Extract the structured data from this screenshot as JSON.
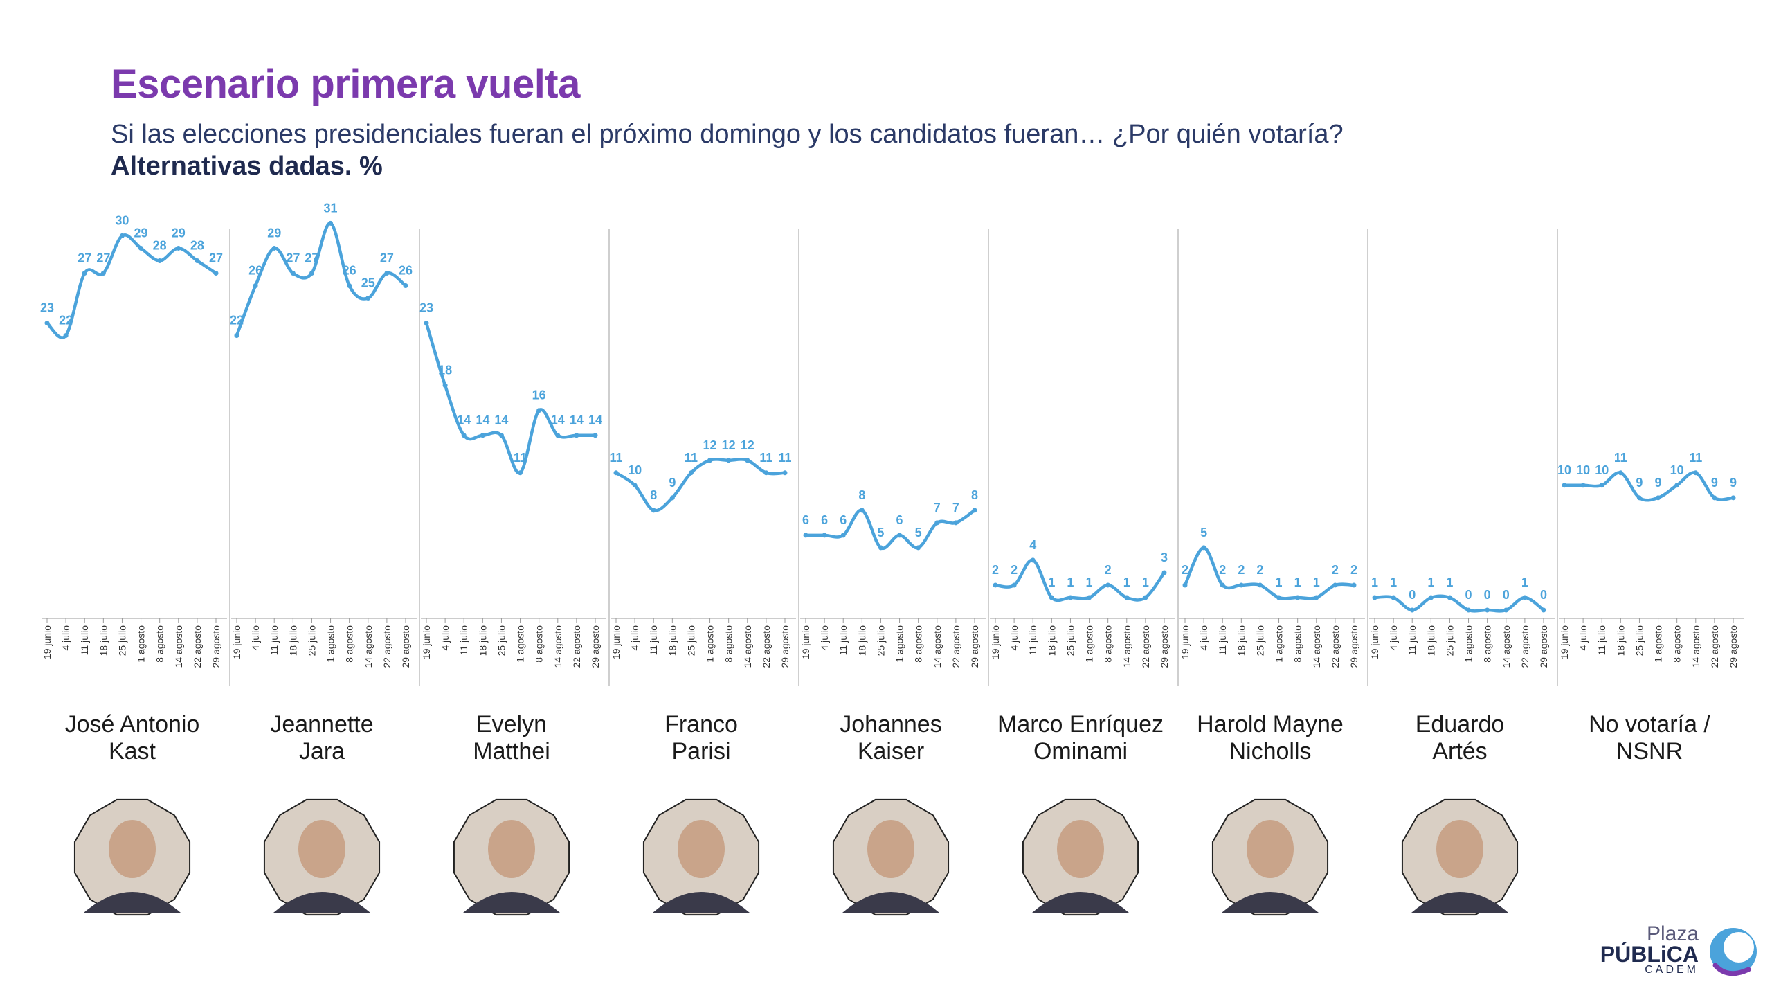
{
  "title": "Escenario primera vuelta",
  "subtitle": "Si las elecciones presidenciales fueran el próximo domingo y los candidatos fueran… ¿Por quién votaría?",
  "note": "Alternativas dadas. %",
  "logo": {
    "line1": "Plaza",
    "line2": "PÚBLiCA",
    "line3": "CADEM"
  },
  "colors": {
    "title": "#7B3AAD",
    "line": "#4BA3DB",
    "text_dark": "#1F2A4F"
  },
  "chart_data": {
    "type": "line",
    "dates": [
      "19 junio",
      "4 julio",
      "11 julio",
      "18 julio",
      "25 julio",
      "1 agosto",
      "8 agosto",
      "14 agosto",
      "22 agosto",
      "29 agosto"
    ],
    "ylim": [
      0,
      36
    ],
    "grid": false,
    "series": [
      {
        "name": [
          "José Antonio",
          "Kast"
        ],
        "values": [
          23,
          22,
          27,
          27,
          30,
          29,
          28,
          29,
          28,
          27
        ]
      },
      {
        "name": [
          "Jeannette",
          "Jara"
        ],
        "values": [
          22,
          26,
          29,
          27,
          27,
          31,
          26,
          25,
          27,
          26
        ]
      },
      {
        "name": [
          "Evelyn",
          "Matthei"
        ],
        "values": [
          23,
          18,
          14,
          14,
          14,
          11,
          16,
          14,
          14,
          14
        ]
      },
      {
        "name": [
          "Franco",
          "Parisi"
        ],
        "values": [
          11,
          10,
          8,
          9,
          11,
          12,
          12,
          12,
          11,
          11
        ]
      },
      {
        "name": [
          "Johannes",
          "Kaiser"
        ],
        "values": [
          6,
          6,
          6,
          8,
          5,
          6,
          5,
          7,
          7,
          8
        ]
      },
      {
        "name": [
          "Marco Enríquez",
          "Ominami"
        ],
        "values": [
          2,
          2,
          4,
          1,
          1,
          1,
          2,
          1,
          1,
          3
        ]
      },
      {
        "name": [
          "Harold Mayne",
          "Nicholls"
        ],
        "values": [
          2,
          5,
          2,
          2,
          2,
          1,
          1,
          1,
          2,
          2
        ]
      },
      {
        "name": [
          "Eduardo",
          "Artés"
        ],
        "values": [
          1,
          1,
          0,
          1,
          1,
          0,
          0,
          0,
          1,
          0
        ]
      },
      {
        "name": [
          "No votaría /",
          "NSNR"
        ],
        "values": [
          10,
          10,
          10,
          11,
          9,
          9,
          10,
          11,
          9,
          9
        ]
      }
    ]
  }
}
